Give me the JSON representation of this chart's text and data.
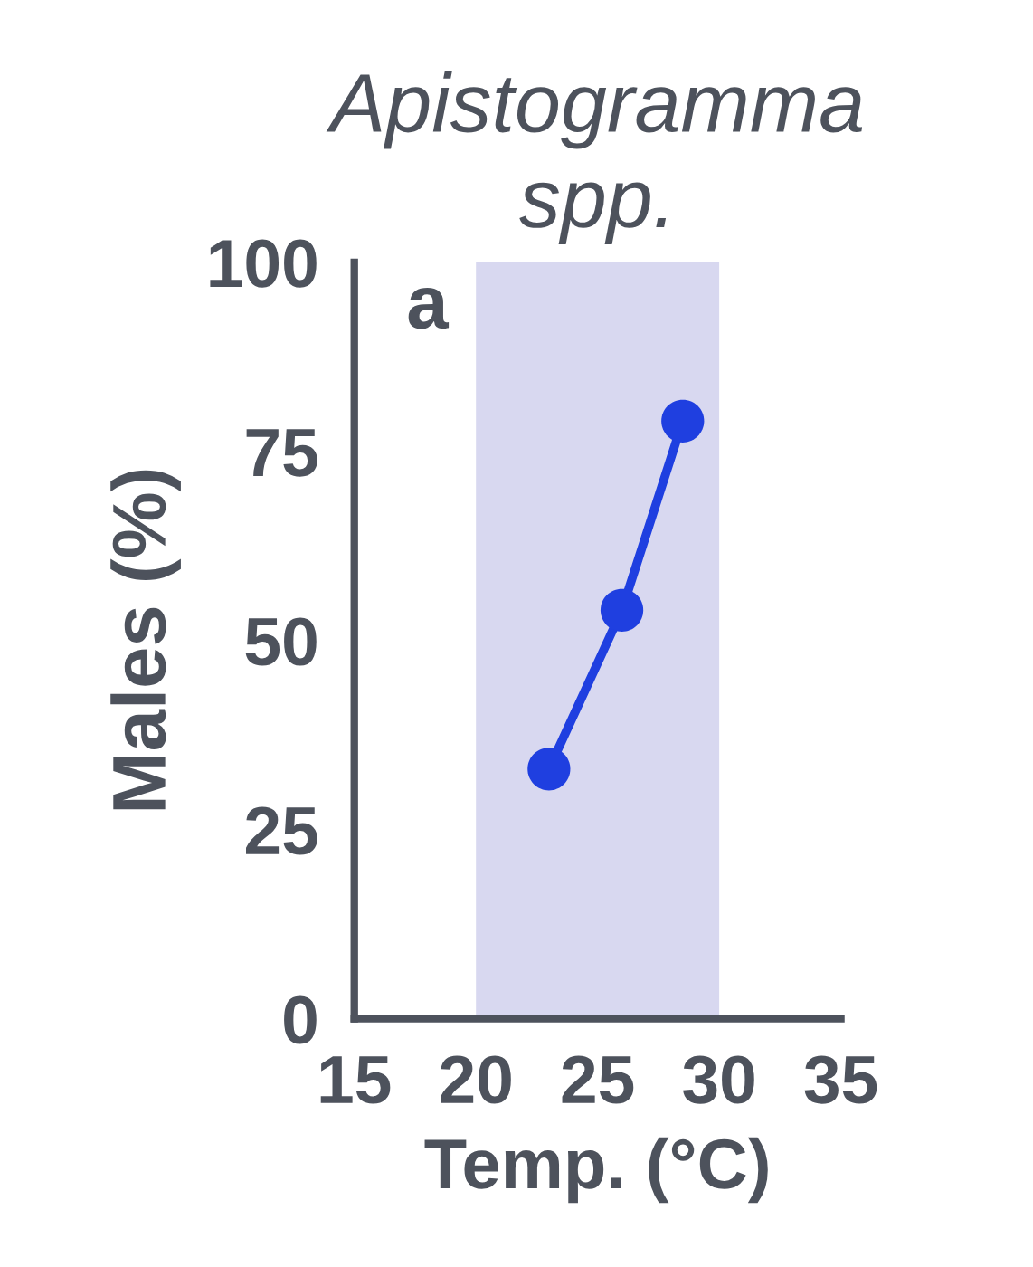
{
  "chart_data": {
    "type": "line",
    "title": "Apistogramma spp.",
    "xlabel": "Temp. (°C)",
    "ylabel": "Males (%)",
    "annotations": [
      "a"
    ],
    "x": [
      23,
      26,
      28.5
    ],
    "series": [
      {
        "color": "#1f3fe0",
        "values": [
          33,
          54,
          79
        ]
      }
    ],
    "xlim": [
      15,
      35
    ],
    "xticks": [
      15,
      20,
      25,
      30,
      35
    ],
    "ylim": [
      0,
      100
    ],
    "yticks": [
      0,
      25,
      50,
      75,
      100
    ],
    "bands": [
      {
        "axis": "x",
        "from": 20,
        "to": 30,
        "color": "#d8d8f0"
      }
    ],
    "marker": "circle",
    "line_style": "solid"
  }
}
